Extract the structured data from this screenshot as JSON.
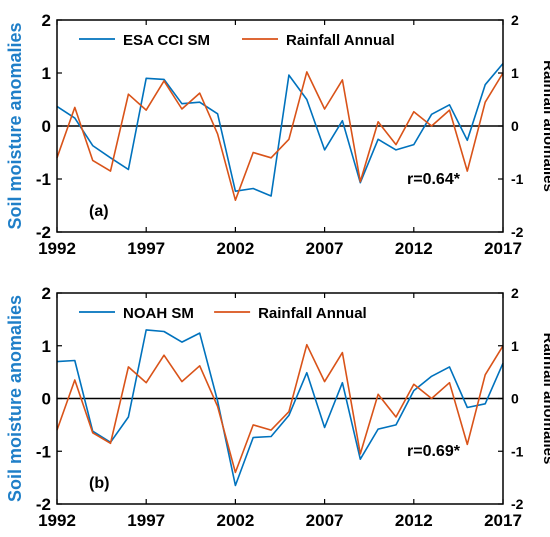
{
  "colors": {
    "sm": "#0072BD",
    "rain": "#D95319",
    "axis": "#000000",
    "ylabel": "#1F7FC8"
  },
  "chart_data": [
    {
      "type": "line",
      "panel_label": "(a)",
      "annotation": "r=0.64*",
      "ylabel_left": "Soil moisture anomalies",
      "ylabel_right": "Rainfall anomalies",
      "x_ticks": [
        "1992",
        "1997",
        "2002",
        "2007",
        "2012",
        "2017"
      ],
      "y_ticks_left": [
        "2",
        "1",
        "0",
        "-1",
        "-2"
      ],
      "y_ticks_right": [
        "2",
        "1",
        "0",
        "-1",
        "-2"
      ],
      "xlim": [
        1992,
        2017
      ],
      "ylim_left": [
        -2,
        2
      ],
      "ylim_right": [
        -2,
        2
      ],
      "zero_line": true,
      "legend_position": "top",
      "x": [
        1992,
        1993,
        1994,
        1995,
        1996,
        1997,
        1998,
        1999,
        2000,
        2001,
        2002,
        2003,
        2004,
        2005,
        2006,
        2007,
        2008,
        2009,
        2010,
        2011,
        2012,
        2013,
        2014,
        2015,
        2016,
        2017
      ],
      "series": [
        {
          "name": "ESA CCI SM",
          "axis": "left",
          "color": "#0072BD",
          "values": [
            0.37,
            0.15,
            -0.37,
            -0.6,
            -0.82,
            0.9,
            0.88,
            0.42,
            0.45,
            0.23,
            -1.23,
            -1.18,
            -1.32,
            0.96,
            0.5,
            -0.45,
            0.1,
            -1.07,
            -0.25,
            -0.45,
            -0.35,
            0.22,
            0.4,
            -0.27,
            0.78,
            1.18
          ]
        },
        {
          "name": "Rainfall Annual",
          "axis": "right",
          "color": "#D95319",
          "values": [
            -0.6,
            0.35,
            -0.65,
            -0.85,
            0.6,
            0.3,
            0.85,
            0.32,
            0.62,
            -0.15,
            -1.4,
            -0.5,
            -0.6,
            -0.25,
            1.02,
            0.32,
            0.87,
            -1.05,
            0.08,
            -0.35,
            0.27,
            0.0,
            0.3,
            -0.85,
            0.45,
            1.0
          ]
        }
      ]
    },
    {
      "type": "line",
      "panel_label": "(b)",
      "annotation": "r=0.69*",
      "ylabel_left": "Soil moisture anomalies",
      "ylabel_right": "Rainfall anomalies",
      "x_ticks": [
        "1992",
        "1997",
        "2002",
        "2007",
        "2012",
        "2017"
      ],
      "y_ticks_left": [
        "2",
        "1",
        "0",
        "-1",
        "-2"
      ],
      "y_ticks_right": [
        "2",
        "1",
        "0",
        "-1",
        "-2"
      ],
      "xlim": [
        1992,
        2017
      ],
      "ylim_left": [
        -2,
        2
      ],
      "ylim_right": [
        -2,
        2
      ],
      "zero_line": true,
      "legend_position": "top",
      "x": [
        1992,
        1993,
        1994,
        1995,
        1996,
        1997,
        1998,
        1999,
        2000,
        2001,
        2002,
        2003,
        2004,
        2005,
        2006,
        2007,
        2008,
        2009,
        2010,
        2011,
        2012,
        2013,
        2014,
        2015,
        2016,
        2017
      ],
      "series": [
        {
          "name": "NOAH SM",
          "axis": "left",
          "color": "#0072BD",
          "values": [
            0.7,
            0.72,
            -0.62,
            -0.83,
            -0.35,
            1.3,
            1.27,
            1.07,
            1.24,
            -0.05,
            -1.65,
            -0.74,
            -0.72,
            -0.32,
            0.49,
            -0.55,
            0.3,
            -1.15,
            -0.58,
            -0.5,
            0.15,
            0.42,
            0.6,
            -0.17,
            -0.1,
            0.67
          ]
        },
        {
          "name": "Rainfall Annual",
          "axis": "right",
          "color": "#D95319",
          "values": [
            -0.6,
            0.35,
            -0.65,
            -0.85,
            0.6,
            0.3,
            0.82,
            0.32,
            0.62,
            -0.15,
            -1.4,
            -0.5,
            -0.6,
            -0.25,
            1.02,
            0.32,
            0.87,
            -1.05,
            0.08,
            -0.35,
            0.27,
            0.0,
            0.3,
            -0.87,
            0.45,
            1.0
          ]
        }
      ]
    }
  ]
}
